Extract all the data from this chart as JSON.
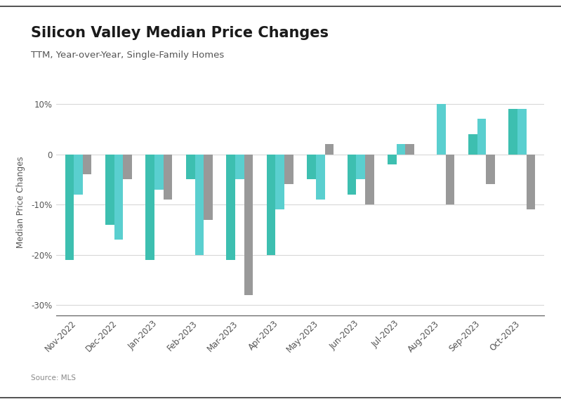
{
  "title": "Silicon Valley Median Price Changes",
  "subtitle": "TTM, Year-over-Year, Single-Family Homes",
  "source": "Source: MLS",
  "ylabel": "Median Price Changes",
  "categories": [
    "Nov-2022",
    "Dec-2022",
    "Jan-2023",
    "Feb-2023",
    "Mar-2023",
    "Apr-2023",
    "May-2023",
    "Jun-2023",
    "Jul-2023",
    "Aug-2023",
    "Sep-2023",
    "Oct-2023"
  ],
  "series": {
    "San Mateo": [
      -21,
      -14,
      -21,
      -5,
      -21,
      -20,
      -5,
      -8,
      -2,
      0,
      4,
      9
    ],
    "Santa Clara": [
      -8,
      -17,
      -7,
      -20,
      -5,
      -11,
      -9,
      -5,
      2,
      10,
      7,
      9
    ],
    "Santa Cruz": [
      -4,
      -5,
      -9,
      -13,
      -28,
      -6,
      2,
      -10,
      2,
      -10,
      -6,
      -11
    ]
  },
  "colors": {
    "San Mateo": "#3dbfb0",
    "Santa Clara": "#5acfcf",
    "Santa Cruz": "#999999"
  },
  "ylim": [
    -32,
    13
  ],
  "yticks": [
    -30,
    -20,
    -10,
    0,
    10
  ],
  "ytick_labels": [
    "-30%",
    "-20%",
    "-10%",
    "0",
    "10%"
  ],
  "background_color": "#ffffff",
  "grid_color": "#d8d8d8",
  "title_fontsize": 15,
  "subtitle_fontsize": 9.5,
  "bar_width": 0.22
}
